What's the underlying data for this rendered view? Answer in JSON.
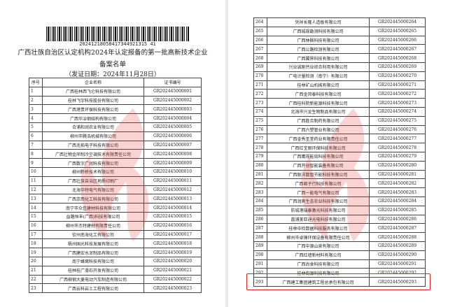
{
  "left_page": {
    "barcode_number": "20241218058417344921315 41",
    "title_line1": "广西壮族自治区认定机构2024年认定报备的第一批高新技术企业",
    "title_line2": "备案名单",
    "issue_date": "（发证日期：2024年11月28日）",
    "headers": [
      "序号",
      "企业名称",
      "证书编号"
    ],
    "rows": [
      [
        "1",
        "广西桂林西飞仑科技有限公司",
        "GR202445000001"
      ],
      [
        "2",
        "桂林飞宇科技股份有限公司",
        "GR202445000002"
      ],
      [
        "3",
        "广西港贵环保科技有限公司",
        "GR202445000003"
      ],
      [
        "4",
        "广西华冶钢结构有限公司",
        "GR202445000004"
      ],
      [
        "5",
        "合浦和润农业有限公司",
        "GR202445000005"
      ],
      [
        "6",
        "柳州市腾浩机械有限公司",
        "GR202445000006"
      ],
      [
        "7",
        "广西兆拓电子科技有限公司",
        "GR202445000007"
      ],
      [
        "8",
        "广西壮物金岸制冷空调技术有限责任公司",
        "GR202445000008"
      ],
      [
        "9",
        "广西数字广润科技有限公司",
        "GR202445000009"
      ],
      [
        "10",
        "柳州黔桥技术有限公司",
        "GR202445000010"
      ],
      [
        "11",
        "广西壮族自治区地质印刷厂",
        "GR202445000011"
      ],
      [
        "12",
        "北海华特电气有限公司",
        "GR202445000012"
      ],
      [
        "13",
        "广西京西化工科技有限公司",
        "GR202445000013"
      ],
      [
        "14",
        "南宁市众佳建材科技有限公司",
        "GR202445000014"
      ],
      [
        "15",
        "益路恒丰(广西)科技有限公司",
        "GR202445000015"
      ],
      [
        "16",
        "柳州市杰特建材有限责任公司",
        "GR202445000016"
      ],
      [
        "17",
        "钦州南海化工有限公司",
        "GR202445000017"
      ],
      [
        "18",
        "梧州国光科技发展有限公司",
        "GR202445000018"
      ],
      [
        "19",
        "广西建宏水泥制品有限公司",
        "GR202445000019"
      ],
      [
        "20",
        "南宁蜂窝科技有限公司",
        "GR202445000020"
      ],
      [
        "21",
        "桂林桂广滑石开发有限公司",
        "GR202445000021"
      ],
      [
        "22",
        "广西柳钢大菱电动汽车制造有限公司",
        "GR202445000022"
      ],
      [
        "23",
        "广西云科岩土工程有限公司",
        "GR202445000023"
      ]
    ]
  },
  "right_page": {
    "rows": [
      [
        "264",
        "凭祥长隆人造板有限公司",
        "GR202445000264"
      ],
      [
        "265",
        "广西城规勘测科技有限公司",
        "GR202445000265"
      ],
      [
        "266",
        "广西林枫科技有限公司",
        "GR202445000266"
      ],
      [
        "267",
        "广西公路检测有限公司",
        "GR202445000267"
      ],
      [
        "268",
        "广西翼界科技有限公司",
        "GR202445000268"
      ],
      [
        "269",
        "兴业诚刚钙业综合利用有限公司",
        "GR202445000269"
      ],
      [
        "270",
        "广电计量检测（南宁）有限公司",
        "GR202445000270"
      ],
      [
        "271",
        "桂林矿山机械有限公司",
        "GR202445000271"
      ],
      [
        "272",
        "广西金邦泰科技有限公司",
        "GR202445000272"
      ],
      [
        "273",
        "广西桂科院新能源科技有限公司",
        "GR202445000273"
      ],
      [
        "274",
        "北海市兴龙生物制品有限公司",
        "GR202445000274"
      ],
      [
        "275",
        "广西胜合制药有限公司",
        "GR202445000275"
      ],
      [
        "276",
        "广西六塑管业有限公司",
        "GR202445000276"
      ],
      [
        "277",
        "广西金秀圣堂药业有限责任公司",
        "GR202445000277"
      ],
      [
        "278",
        "广西红宝丽环保科技有限公司",
        "GR202445000278"
      ],
      [
        "279",
        "广西鹰视能效科技有限公司",
        "GR202445000279"
      ],
      [
        "280",
        "广西开创智能装备有限公司",
        "GR202445000280"
      ],
      [
        "281",
        "广西联洋数智节能科技有限公司",
        "GR202445000281"
      ],
      [
        "282",
        "广西君子行科技有限公司",
        "GR202445000282"
      ],
      [
        "283",
        "广西一能电气有限公司",
        "GR202445000283"
      ],
      [
        "284",
        "广西润爽生态农业科技有限公司",
        "GR202445000284"
      ],
      [
        "285",
        "防城港瑞泰激光科技有限公司",
        "GR202445000285"
      ],
      [
        "286",
        "荔浦美亚迪光电科技有限公司",
        "GR202445000286"
      ],
      [
        "287",
        "桂林中检数据科技服务有限公司",
        "GR202445000287"
      ],
      [
        "288",
        "柳州市卓锋环保设备有限责任公司",
        "GR202445000288"
      ],
      [
        "289",
        "广西中源山泉有限公司",
        "GR202445000289"
      ],
      [
        "290",
        "广西红墙新材料有限公司",
        "GR202445000290"
      ],
      [
        "291",
        "广西尚食科技有限公司",
        "GR202445000291"
      ],
      [
        "292",
        "桂林街源科技有限公司",
        "GR202445000292"
      ],
      [
        "293",
        "广西建工集团建筑工程总承包有限公司",
        "GR202445000293"
      ]
    ],
    "highlight_color": "#e02424",
    "highlighted_row": "293"
  },
  "watermark_color": "#e53935"
}
